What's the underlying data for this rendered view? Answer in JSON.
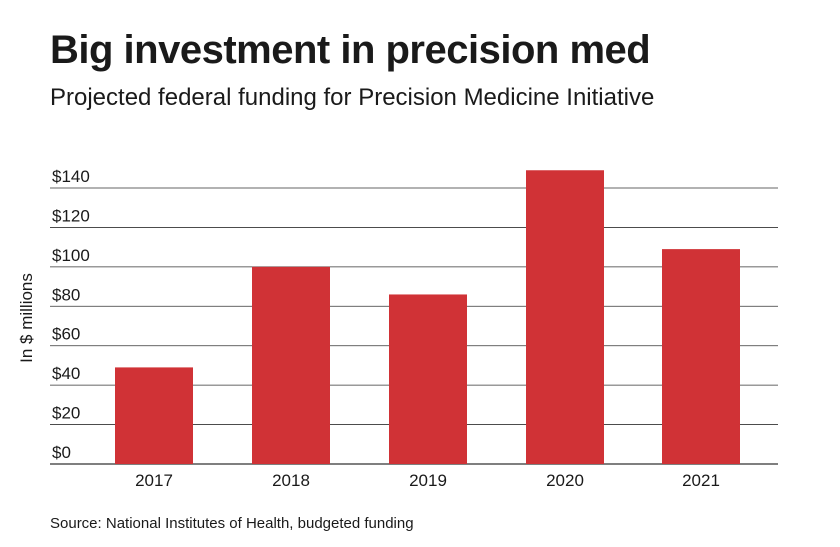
{
  "header": {
    "title": "Big investment in precision med",
    "subtitle": "Projected federal funding for Precision Medicine Initiative"
  },
  "footer": {
    "source": "Source: National Institutes of Health, budgeted funding"
  },
  "colors": {
    "bar": "#d03236",
    "gridline": "#333333",
    "text": "#1a1a1a"
  },
  "chart_data": {
    "type": "bar",
    "title": "Big investment in precision med",
    "subtitle": "Projected federal funding for Precision Medicine Initiative",
    "categories": [
      "2017",
      "2018",
      "2019",
      "2020",
      "2021"
    ],
    "values": [
      49,
      100,
      86,
      149,
      109
    ],
    "xlabel": "",
    "ylabel": "In $ millions",
    "ylim": [
      0,
      140
    ],
    "yticks": [
      0,
      20,
      40,
      60,
      80,
      100,
      120,
      140
    ],
    "ytick_labels": [
      "$0",
      "$20",
      "$40",
      "$60",
      "$80",
      "$100",
      "$120",
      "$140"
    ],
    "grid": true,
    "legend": "none"
  }
}
